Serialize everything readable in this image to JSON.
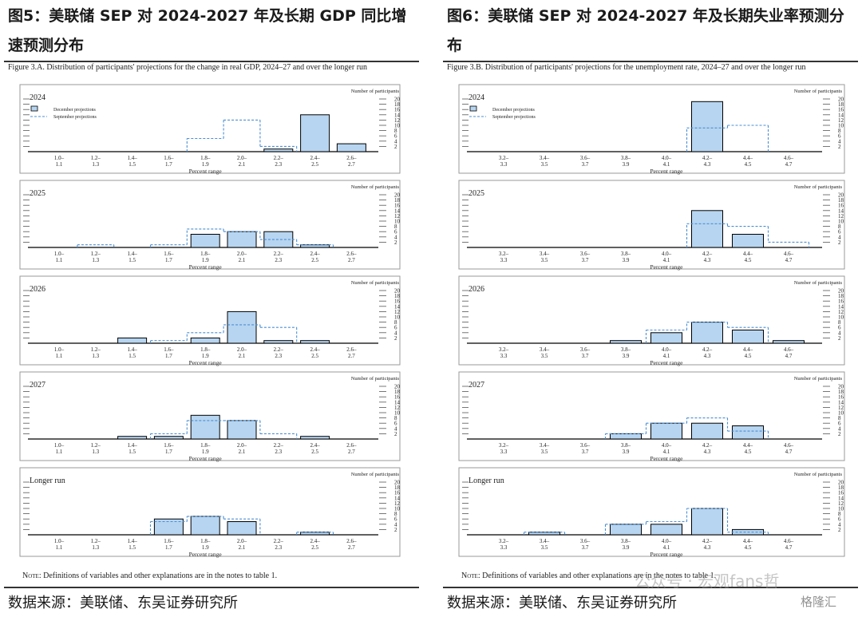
{
  "panels": [
    {
      "cn_title": "图5：美联储 SEP 对 2024-2027 年及长期 GDP 同比增速预测分布",
      "figure_caption": "Figure 3.A. Distribution of participants' projections for the change in real GDP, 2024–27 and over the longer run",
      "note_label": "Note:",
      "note_text": "Definitions of variables and other explanations are in the notes to table 1.",
      "source": "数据来源：美联储、东吴证券研究所"
    },
    {
      "cn_title": "图6：美联储 SEP 对 2024-2027 年及长期失业率预测分布",
      "figure_caption": "Figure 3.B. Distribution of participants' projections for the unemployment rate, 2024–27 and over the longer run",
      "note_label": "Note:",
      "note_text": "Definitions of variables and other explanations are in the notes to table 1.",
      "source": "数据来源：美联储、东吴证券研究所"
    }
  ],
  "watermark": {
    "text": "公众号 · 宏观fans哲",
    "logo": "格隆汇"
  },
  "colors": {
    "bar_fill": "#b7d5f0",
    "bar_stroke": "#000000",
    "dashed": "#4a8fd6"
  },
  "chart_data": [
    {
      "type": "bar",
      "panel": "gdp",
      "legend": {
        "december": "December projections",
        "september": "September projections"
      },
      "y_axis_label": "Number of participants",
      "x_axis_label": "Percent range",
      "y_ticks": [
        2,
        4,
        6,
        8,
        10,
        12,
        14,
        16,
        18,
        20
      ],
      "ylim": [
        0,
        20
      ],
      "categories_top": [
        "1.0–",
        "1.2–",
        "1.4–",
        "1.6–",
        "1.8–",
        "2.0–",
        "2.2–",
        "2.4–",
        "2.6–"
      ],
      "categories_bottom": [
        "1.1",
        "1.3",
        "1.5",
        "1.7",
        "1.9",
        "2.1",
        "2.3",
        "2.5",
        "2.7"
      ],
      "subplots": [
        {
          "title": "2024",
          "december": [
            0,
            0,
            0,
            0,
            0,
            0,
            1,
            14,
            3
          ],
          "september": [
            0,
            0,
            0,
            0,
            5,
            12,
            2,
            0,
            0
          ]
        },
        {
          "title": "2025",
          "december": [
            0,
            0,
            0,
            0,
            5,
            6,
            6,
            1,
            0
          ],
          "september": [
            0,
            1,
            0,
            1,
            7,
            6,
            3,
            1,
            0
          ]
        },
        {
          "title": "2026",
          "december": [
            0,
            0,
            2,
            0,
            2,
            12,
            1,
            1,
            0
          ],
          "september": [
            0,
            0,
            0,
            1,
            4,
            7,
            6,
            0,
            0
          ]
        },
        {
          "title": "2027",
          "december": [
            0,
            0,
            1,
            1,
            9,
            7,
            0,
            1,
            0
          ],
          "september": [
            0,
            0,
            0,
            2,
            7,
            7,
            2,
            0,
            0
          ]
        },
        {
          "title": "Longer run",
          "december": [
            0,
            0,
            0,
            6,
            7,
            5,
            0,
            1,
            0
          ],
          "september": [
            0,
            0,
            0,
            5,
            7,
            6,
            0,
            1,
            0
          ]
        }
      ]
    },
    {
      "type": "bar",
      "panel": "unemployment",
      "legend": {
        "december": "December projections",
        "september": "September projections"
      },
      "y_axis_label": "Number of participants",
      "x_axis_label": "Percent range",
      "y_ticks": [
        2,
        4,
        6,
        8,
        10,
        12,
        14,
        16,
        18,
        20
      ],
      "ylim": [
        0,
        20
      ],
      "categories_top": [
        "3.2–",
        "3.4–",
        "3.6–",
        "3.8–",
        "4.0–",
        "4.2–",
        "4.4–",
        "4.6–"
      ],
      "categories_bottom": [
        "3.3",
        "3.5",
        "3.7",
        "3.9",
        "4.1",
        "4.3",
        "4.5",
        "4.7"
      ],
      "subplots": [
        {
          "title": "2024",
          "december": [
            0,
            0,
            0,
            0,
            0,
            19,
            0,
            0
          ],
          "september": [
            0,
            0,
            0,
            0,
            0,
            9,
            10,
            0
          ]
        },
        {
          "title": "2025",
          "december": [
            0,
            0,
            0,
            0,
            0,
            14,
            5,
            0
          ],
          "september": [
            0,
            0,
            0,
            0,
            0,
            9,
            8,
            2
          ]
        },
        {
          "title": "2026",
          "december": [
            0,
            0,
            0,
            1,
            4,
            8,
            5,
            1
          ],
          "september": [
            0,
            0,
            0,
            0,
            5,
            8,
            6,
            0
          ]
        },
        {
          "title": "2027",
          "december": [
            0,
            0,
            0,
            2,
            6,
            6,
            5,
            0
          ],
          "september": [
            0,
            0,
            0,
            2,
            6,
            8,
            3,
            0
          ]
        },
        {
          "title": "Longer run",
          "december": [
            0,
            1,
            0,
            4,
            4,
            10,
            2,
            0
          ],
          "september": [
            0,
            1,
            0,
            4,
            5,
            10,
            1,
            0
          ]
        }
      ]
    }
  ]
}
